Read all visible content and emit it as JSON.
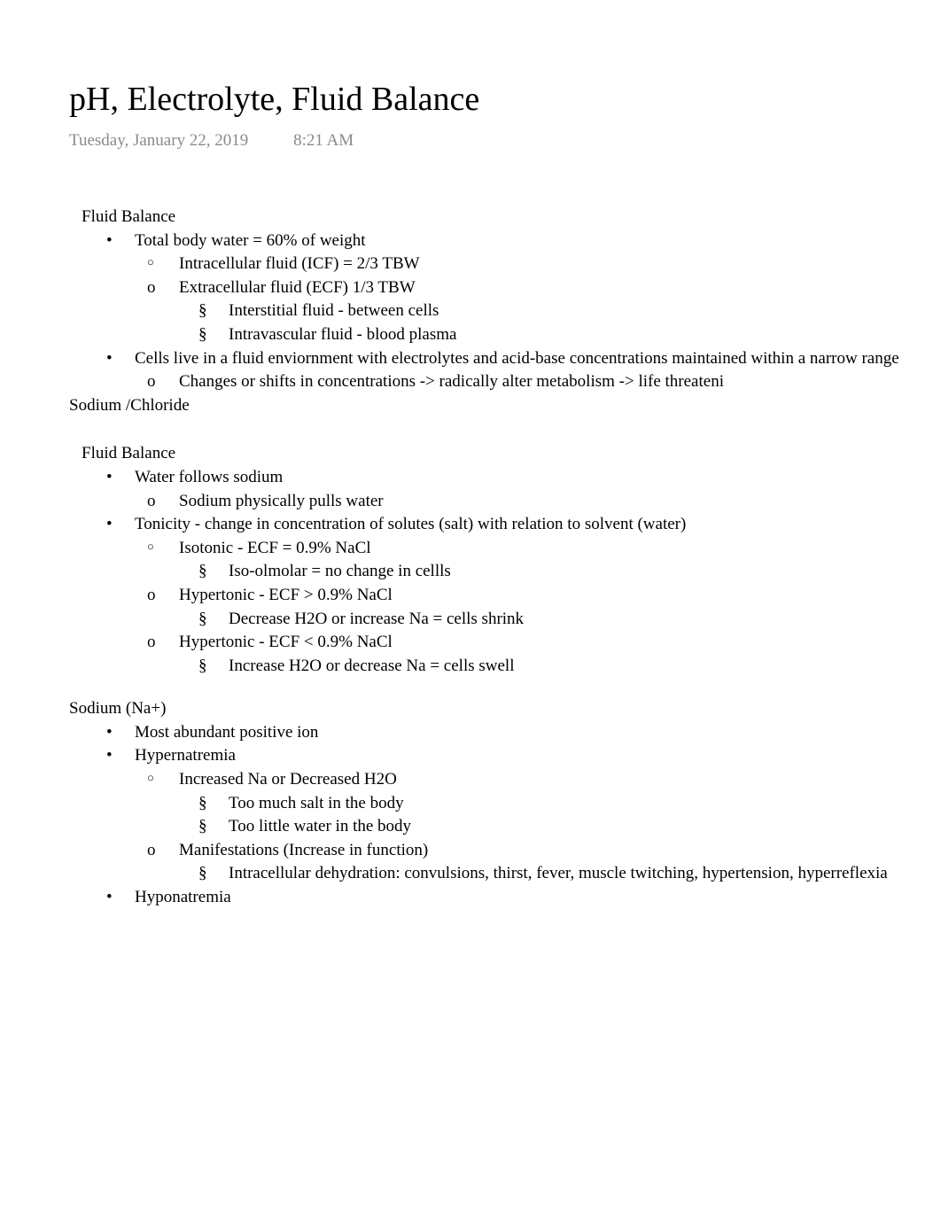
{
  "title": "pH, Electrolyte, Fluid Balance",
  "meta": {
    "date": "Tuesday, January 22, 2019",
    "time": "8:21 AM"
  },
  "s1": {
    "head": "Fluid Balance",
    "b1": "Total body water = 60% of weight",
    "b1a": "Intracellular fluid (ICF) = 2/3 TBW",
    "b1b": "Extracellular fluid (ECF) 1/3 TBW",
    "b1b1": "Interstitial fluid - between cells",
    "b1b2": "Intravascular fluid - blood plasma",
    "b2": "Cells live in a fluid enviornment with electrolytes and acid-base concentrations maintained within a narrow range",
    "b2a": "Changes or shifts in concentrations -> radically alter metabolism -> life threateni"
  },
  "s2": {
    "head": "Sodium /Chloride"
  },
  "s3": {
    "head": "Fluid Balance",
    "b1": "Water follows sodium",
    "b1a": "Sodium physically pulls water",
    "b2": "Tonicity - change in concentration of solutes (salt) with relation to solvent (water)",
    "b2a": "Isotonic - ECF = 0.9% NaCl",
    "b2a1": "Iso-olmolar = no change in cellls",
    "b2b": "Hypertonic - ECF > 0.9% NaCl",
    "b2b1": "Decrease H2O or increase Na = cells shrink",
    "b2c": "Hypertonic - ECF < 0.9% NaCl",
    "b2c1": "Increase H2O or decrease Na = cells swell"
  },
  "s4": {
    "head": "Sodium (Na+)",
    "b1": "Most abundant positive ion",
    "b2": "Hypernatremia",
    "b2a": "Increased Na or Decreased H2O",
    "b2a1": "Too much salt in the body",
    "b2a2": "Too little water in the body",
    "b2b": "Manifestations (Increase in function)",
    "b2b1": "Intracellular dehydration: convulsions, thirst, fever, muscle twitching, hypertension, hyperreflexia",
    "b3": "Hyponatremia"
  }
}
